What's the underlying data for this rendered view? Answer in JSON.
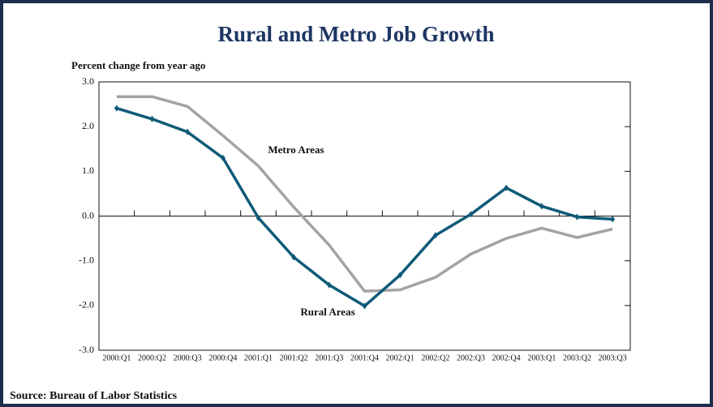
{
  "chart_data": {
    "type": "line",
    "title": "Rural and Metro Job Growth",
    "y_label": "Percent change from year ago",
    "source": "Source: Bureau of Labor Statistics",
    "categories": [
      "2000:Q1",
      "2000:Q2",
      "2000:Q3",
      "2000:Q4",
      "2001:Q1",
      "2001:Q2",
      "2001:Q3",
      "2001:Q4",
      "2002:Q1",
      "2002:Q2",
      "2002:Q3",
      "2002:Q4",
      "2003:Q1",
      "2003:Q2",
      "2003:Q3"
    ],
    "series": [
      {
        "name": "Rural Areas",
        "color": "#0f5a78",
        "markers": true,
        "values": [
          2.41,
          2.17,
          1.88,
          1.3,
          -0.04,
          -0.92,
          -1.54,
          -2.01,
          -1.32,
          -0.43,
          0.04,
          0.63,
          0.22,
          -0.02,
          -0.07
        ]
      },
      {
        "name": "Metro Areas",
        "color": "#a3a3a3",
        "markers": false,
        "values": [
          2.67,
          2.67,
          2.45,
          1.8,
          1.12,
          0.2,
          -0.65,
          -1.68,
          -1.65,
          -1.37,
          -0.85,
          -0.5,
          -0.27,
          -0.48,
          -0.29
        ]
      }
    ],
    "ylim": [
      -3,
      3
    ],
    "yticks": [
      {
        "value": -3,
        "label": "-3.0"
      },
      {
        "value": -2,
        "label": "-2.0"
      },
      {
        "value": -1,
        "label": "-1.0"
      },
      {
        "value": 0,
        "label": "0.0"
      },
      {
        "value": 1,
        "label": "1.0"
      },
      {
        "value": 2,
        "label": "2.0"
      },
      {
        "value": 3,
        "label": "3.0"
      }
    ]
  }
}
